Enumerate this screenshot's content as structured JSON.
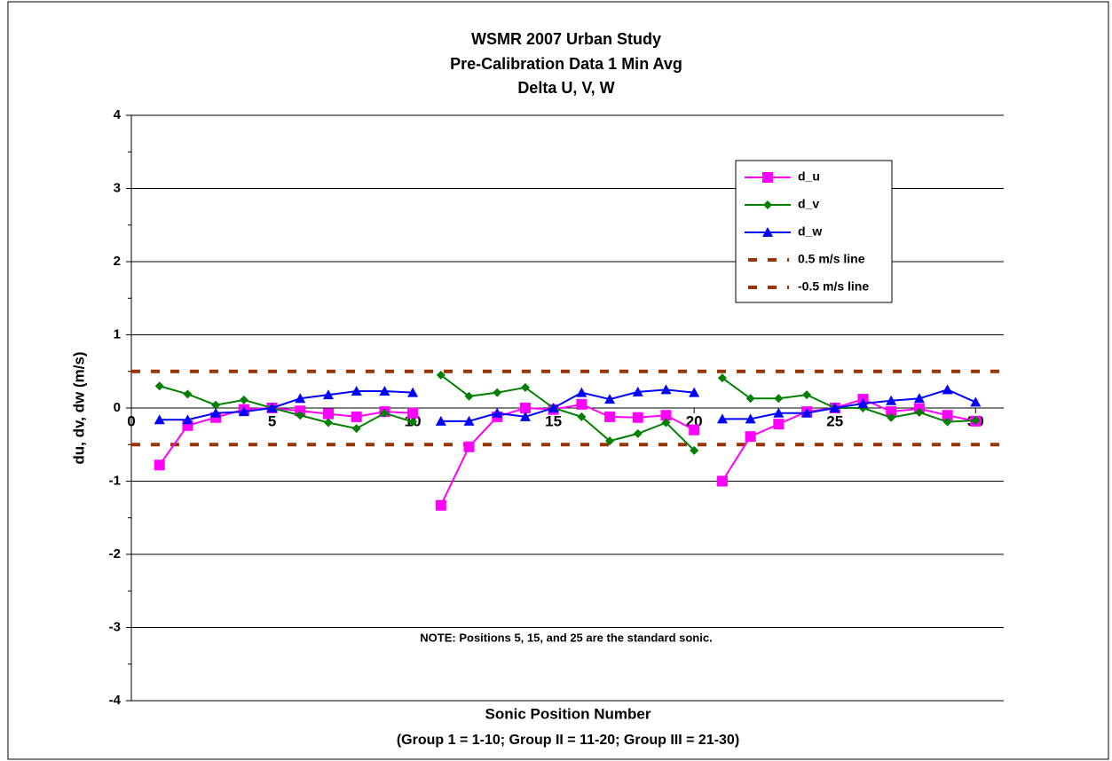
{
  "chart_data": {
    "type": "line",
    "title": [
      "WSMR 2007 Urban Study",
      "Pre-Calibration Data 1 Min Avg",
      "Delta U, V, W"
    ],
    "ylabel": "du, dv, dw (m/s)",
    "xlabel": [
      "Sonic Position Number",
      "(Group 1 = 1-10;  Group II = 11-20;  Group III = 21-30)"
    ],
    "annotation": "NOTE:  Positions 5, 15, and 25 are the standard sonic.",
    "x": [
      1,
      2,
      3,
      4,
      5,
      6,
      7,
      8,
      9,
      10,
      null,
      11,
      12,
      13,
      14,
      15,
      16,
      17,
      18,
      19,
      20,
      null,
      21,
      22,
      23,
      24,
      25,
      26,
      27,
      28,
      29,
      30
    ],
    "series": [
      {
        "name": "d_u",
        "color": "#ff00ff",
        "marker": "square",
        "values": [
          -0.78,
          -0.24,
          -0.13,
          -0.02,
          0,
          -0.04,
          -0.08,
          -0.12,
          -0.05,
          -0.07,
          null,
          -1.33,
          -0.53,
          -0.12,
          0,
          -0.02,
          0.05,
          -0.12,
          -0.13,
          -0.1,
          -0.3,
          null,
          -1.0,
          -0.39,
          -0.22,
          -0.05,
          0,
          0.12,
          -0.05,
          -0.01,
          -0.1,
          -0.18
        ]
      },
      {
        "name": "d_v",
        "color": "#008000",
        "marker": "diamond",
        "values": [
          0.3,
          0.19,
          0.04,
          0.11,
          0,
          -0.1,
          -0.2,
          -0.28,
          -0.07,
          -0.19,
          null,
          0.45,
          0.16,
          0.21,
          0.28,
          0,
          -0.12,
          -0.45,
          -0.35,
          -0.2,
          -0.58,
          null,
          0.41,
          0.13,
          0.13,
          0.18,
          0,
          0,
          -0.13,
          -0.06,
          -0.19,
          -0.17
        ]
      },
      {
        "name": "d_w",
        "color": "#0000ff",
        "marker": "triangle",
        "values": [
          -0.16,
          -0.16,
          -0.07,
          -0.05,
          0,
          0.13,
          0.18,
          0.23,
          0.23,
          0.21,
          null,
          -0.18,
          -0.18,
          -0.07,
          -0.12,
          0,
          0.21,
          0.12,
          0.22,
          0.25,
          0.21,
          null,
          -0.15,
          -0.15,
          -0.07,
          -0.07,
          0,
          0.06,
          0.1,
          0.13,
          0.25,
          0.08
        ]
      }
    ],
    "reference_lines": [
      {
        "name": "0.5 m/s line",
        "value": 0.5,
        "color": "#993300"
      },
      {
        "name": "-0.5 m/s line",
        "value": -0.5,
        "color": "#993300"
      }
    ],
    "xlim": [
      0,
      31
    ],
    "xticks": [
      0,
      5,
      10,
      15,
      20,
      25,
      30
    ],
    "ylim": [
      -4,
      4
    ],
    "yticks": [
      -4,
      -3,
      -2,
      -1,
      0,
      1,
      2,
      3,
      4
    ],
    "yminorticks": [
      -3.5,
      -2.5,
      -1.5,
      -0.5,
      0.5,
      1.5,
      2.5,
      3.5
    ],
    "grid": true,
    "legend": "upper right"
  }
}
